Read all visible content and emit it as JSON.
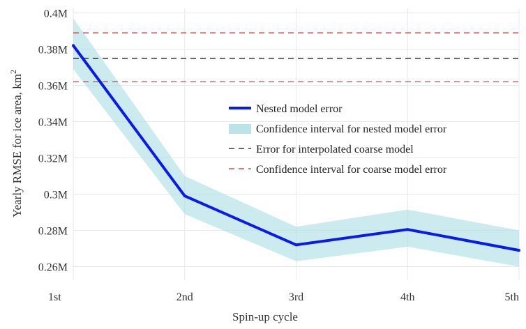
{
  "chart_data": {
    "type": "line",
    "title": "",
    "xlabel": "Spin-up cycle",
    "ylabel": "Yearly RMSE for ice area, km",
    "ylabel_superscript": "2",
    "categories": [
      "1st",
      "2nd",
      "3rd",
      "4th",
      "5th"
    ],
    "ylim": [
      0.2525,
      0.4025
    ],
    "yticks": [
      0.26,
      0.28,
      0.3,
      0.32,
      0.34,
      0.36,
      0.38,
      0.4
    ],
    "ytick_labels": [
      "0.26M",
      "0.28M",
      "0.3M",
      "0.32M",
      "0.34M",
      "0.36M",
      "0.38M",
      "0.4M"
    ],
    "grid": true,
    "legend_position": "center-right",
    "series": [
      {
        "name": "Nested model error",
        "values": [
          0.382,
          0.299,
          0.272,
          0.2805,
          0.269
        ],
        "color": "#0a1ae8",
        "style": "solid"
      },
      {
        "name": "Confidence interval for nested model error",
        "lower": [
          0.369,
          0.289,
          0.263,
          0.271,
          0.26
        ],
        "upper": [
          0.397,
          0.31,
          0.282,
          0.2915,
          0.28
        ],
        "color": "#a9dde2",
        "style": "band"
      },
      {
        "name": "Error for interpolated coarse model",
        "constant": 0.375,
        "color": "#111111",
        "style": "dashed"
      },
      {
        "name": "Confidence interval for coarse model error",
        "constants": [
          0.389,
          0.362
        ],
        "color": "#e02020",
        "style": "dashed"
      }
    ]
  }
}
